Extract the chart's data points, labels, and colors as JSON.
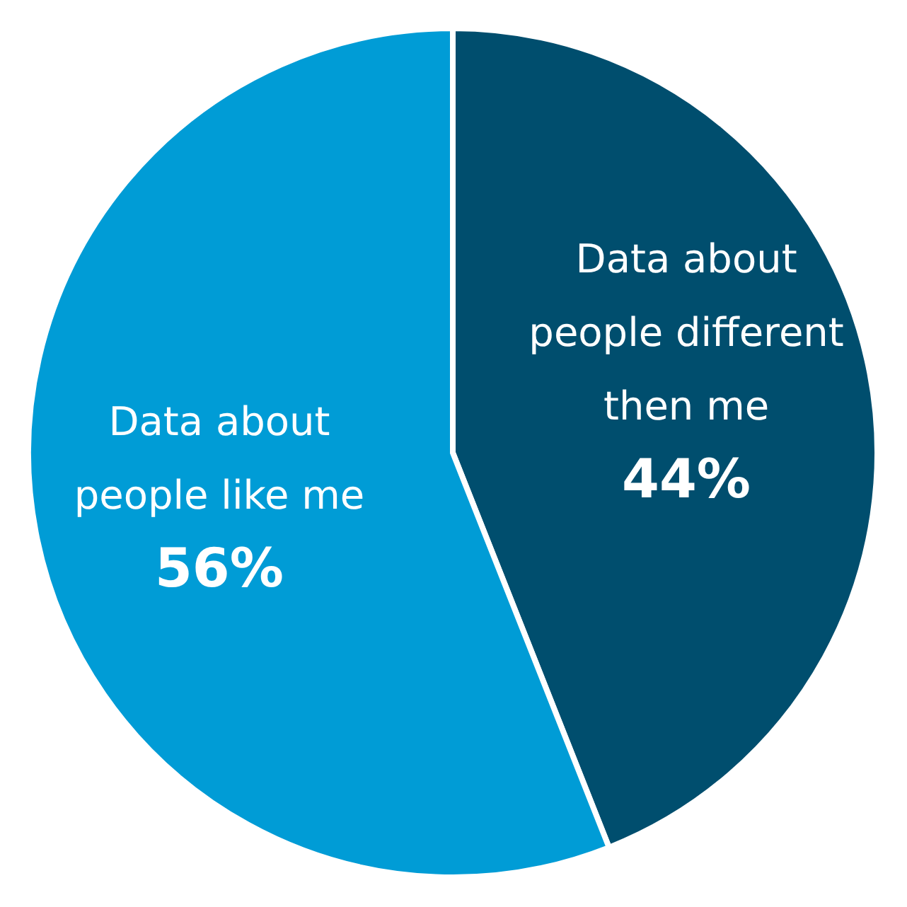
{
  "chart_data": {
    "type": "pie",
    "categories": [
      "Data about people different then me",
      "Data about people like me"
    ],
    "values": [
      44,
      56
    ],
    "colors": [
      "#004e6e",
      "#009cd6"
    ],
    "value_labels": [
      "44%",
      "56%"
    ]
  }
}
